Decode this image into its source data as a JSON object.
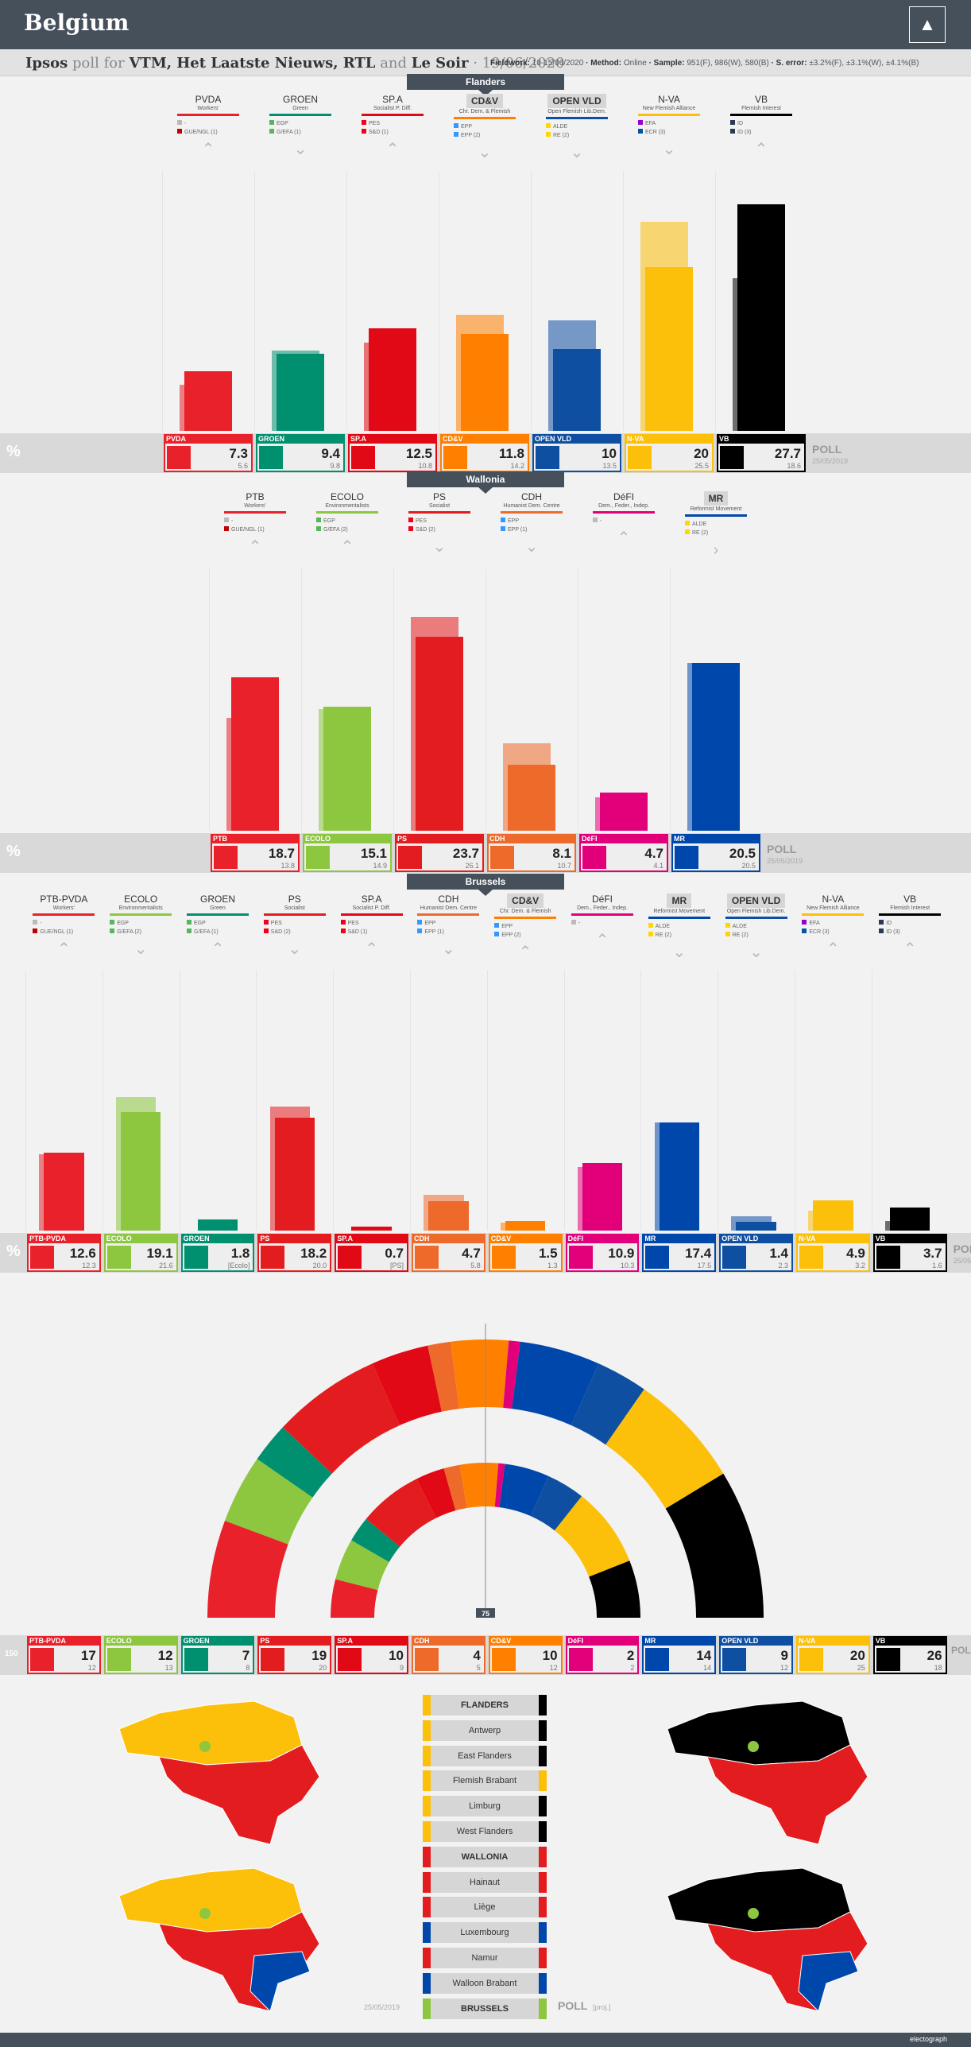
{
  "header": {
    "title": "Belgium",
    "logo_icon": "belgium-map-icon"
  },
  "subheader": {
    "pollster": "Ipsos",
    "for_text": "poll for",
    "clients": "VTM, Het Laatste Nieuws, RTL",
    "and_text": "and",
    "client2": "Le Soir",
    "date": "· 19/06/2020",
    "fieldwork_label": "Fieldwork:",
    "fieldwork": "10-15/06/2020",
    "method_label": "· Method:",
    "method": "Online",
    "sample_label": "· Sample:",
    "sample": "951(F), 986(W), 580(B)",
    "error_label": "· S. error:",
    "error": "±3.2%(F), ±3.1%(W), ±4.1%(B)"
  },
  "labels": {
    "pct": "%",
    "poll": "POLL",
    "prev_date": "25/05/2019",
    "seats": "150",
    "majority": "75",
    "map_prev_date": "25/05/2019",
    "map_poll": "POLL",
    "map_proj": "[proj.]"
  },
  "chart_data": [
    {
      "type": "bar",
      "title": "Flanders",
      "categories": [
        "PVDA",
        "GROEN",
        "SP.A",
        "CD&V",
        "OPEN VLD",
        "N-VA",
        "VB"
      ],
      "full_names": [
        "Workers'",
        "Green",
        "Socialist P. Diff.",
        "Chr. Dem. & Flemish",
        "Open Flemish Lib.Dem.",
        "New Flemish Alliance",
        "Flemish Interest"
      ],
      "series": [
        {
          "name": "POLL",
          "values": [
            7.3,
            9.4,
            12.5,
            11.8,
            10.0,
            20.0,
            27.7
          ]
        },
        {
          "name": "25/05/2019",
          "values": [
            5.6,
            9.8,
            10.8,
            14.2,
            13.5,
            25.5,
            18.6
          ]
        }
      ],
      "trend": [
        "up",
        "down",
        "up",
        "down",
        "down",
        "down",
        "up"
      ],
      "groups": [
        [
          "-",
          "GUE/NGL (1)"
        ],
        [
          "EGP",
          "G/EFA (1)"
        ],
        [
          "PES",
          "S&D (1)"
        ],
        [
          "EPP",
          "EPP (2)"
        ],
        [
          "ALDE",
          "RE (2)"
        ],
        [
          "EFA",
          "ECR (3)"
        ],
        [
          "ID",
          "ID (3)"
        ]
      ]
    },
    {
      "type": "bar",
      "title": "Wallonia",
      "categories": [
        "PTB",
        "ECOLO",
        "PS",
        "CDH",
        "DéFI",
        "MR"
      ],
      "full_names": [
        "Workers'",
        "Environmentalists",
        "Socialist",
        "Humanist Dem. Centre",
        "Dem., Feder., Indep.",
        "Reformist Movement"
      ],
      "series": [
        {
          "name": "POLL",
          "values": [
            18.7,
            15.1,
            23.7,
            8.1,
            4.7,
            20.5
          ]
        },
        {
          "name": "25/05/2019",
          "values": [
            13.8,
            14.9,
            26.1,
            10.7,
            4.1,
            20.5
          ]
        }
      ],
      "trend": [
        "up",
        "up",
        "down",
        "down",
        "up",
        "right"
      ],
      "groups": [
        [
          "-",
          "GUE/NGL (1)"
        ],
        [
          "EGP",
          "G/EFA (2)"
        ],
        [
          "PES",
          "S&D (2)"
        ],
        [
          "EPP",
          "EPP (1)"
        ],
        [
          "-",
          ""
        ],
        [
          "ALDE",
          "RE (2)"
        ]
      ]
    },
    {
      "type": "bar",
      "title": "Brussels",
      "categories": [
        "PTB-PVDA",
        "ECOLO",
        "GROEN",
        "PS",
        "SP.A",
        "CDH",
        "CD&V",
        "DéFI",
        "MR",
        "OPEN VLD",
        "N-VA",
        "VB"
      ],
      "full_names": [
        "Workers'",
        "Environmentalists",
        "Green",
        "Socialist",
        "Socialist P. Diff.",
        "Humanist Dem. Centre",
        "Chr. Dem. & Flemish",
        "Dem., Feder., Indep.",
        "Reformist Movement",
        "Open Flemish Lib.Dem.",
        "New Flemish Alliance",
        "Flemish Interest"
      ],
      "series": [
        {
          "name": "POLL",
          "values": [
            12.6,
            19.1,
            1.8,
            18.2,
            0.7,
            4.7,
            1.5,
            10.9,
            17.4,
            1.4,
            4.9,
            3.7
          ]
        },
        {
          "name": "25/05/2019",
          "values": [
            12.3,
            21.6,
            null,
            20.0,
            null,
            5.8,
            1.3,
            10.3,
            17.5,
            2.3,
            3.2,
            1.6
          ]
        }
      ],
      "prev_labels": [
        "12.3",
        "21.6",
        "[Ecolo]",
        "20.0",
        "[PS]",
        "5.8",
        "1.3",
        "10.3",
        "17.5",
        "2.3",
        "3.2",
        "1.6"
      ],
      "trend": [
        "up",
        "down",
        "up",
        "down",
        "up",
        "down",
        "up",
        "up",
        "down",
        "down",
        "up",
        "up"
      ],
      "groups": [
        [
          "-",
          "GUE/NGL (1)"
        ],
        [
          "EGP",
          "G/EFA (2)"
        ],
        [
          "EGP",
          "G/EFA (1)"
        ],
        [
          "PES",
          "S&D (2)"
        ],
        [
          "PES",
          "S&D (1)"
        ],
        [
          "EPP",
          "EPP (1)"
        ],
        [
          "EPP",
          "EPP (2)"
        ],
        [
          "-",
          ""
        ],
        [
          "ALDE",
          "RE (2)"
        ],
        [
          "ALDE",
          "RE (2)"
        ],
        [
          "EFA",
          "ECR (3)"
        ],
        [
          "ID",
          "ID (3)"
        ]
      ]
    },
    {
      "type": "pie",
      "title": "",
      "categories": [
        "PTB-PVDA",
        "ECOLO",
        "GROEN",
        "PS",
        "SP.A",
        "CDH",
        "CD&V",
        "DéFI",
        "MR",
        "OPEN VLD",
        "N-VA",
        "VB"
      ],
      "series": [
        {
          "name": "POLL",
          "values": [
            17,
            12,
            7,
            19,
            10,
            4,
            10,
            2,
            14,
            9,
            20,
            26
          ]
        },
        {
          "name": "25/05/2019",
          "values": [
            12,
            13,
            8,
            20,
            9,
            5,
            12,
            2,
            14,
            12,
            25,
            18
          ]
        }
      ],
      "total_seats": 150,
      "majority": 75
    }
  ],
  "party_colors": {
    "PVDA": "#e8212a",
    "GROEN": "#01906f",
    "SP.A": "#e10915",
    "CD&V": "#ff8000",
    "OPEN VLD": "#0e4fa2",
    "N-VA": "#fcc00a",
    "VB": "#000000",
    "PTB": "#e8212a",
    "ECOLO": "#8dc63f",
    "PS": "#e31c1f",
    "CDH": "#ed6a2a",
    "DéFI": "#e1007a",
    "MR": "#0047ab",
    "PTB-PVDA": "#e8212a"
  },
  "maps": {
    "left_title": "25/05/2019",
    "legend": [
      "FLANDERS",
      "Antwerp",
      "East Flanders",
      "Flemish Brabant",
      "Limburg",
      "West Flanders",
      "WALLONIA",
      "Hainaut",
      "Liège",
      "Luxembourg",
      "Namur",
      "Walloon Brabant",
      "BRUSSELS"
    ],
    "legend_left": [
      "#fcc00a",
      "#fcc00a",
      "#fcc00a",
      "#fcc00a",
      "#fcc00a",
      "#fcc00a",
      "#e31c1f",
      "#e31c1f",
      "#e31c1f",
      "#0047ab",
      "#e31c1f",
      "#0047ab",
      "#8dc63f"
    ],
    "legend_right": [
      "#000000",
      "#000000",
      "#000000",
      "#fcc00a",
      "#000000",
      "#000000",
      "#e31c1f",
      "#e31c1f",
      "#e31c1f",
      "#0047ab",
      "#e31c1f",
      "#0047ab",
      "#8dc63f"
    ]
  },
  "footer": {
    "brand": "electograph"
  }
}
